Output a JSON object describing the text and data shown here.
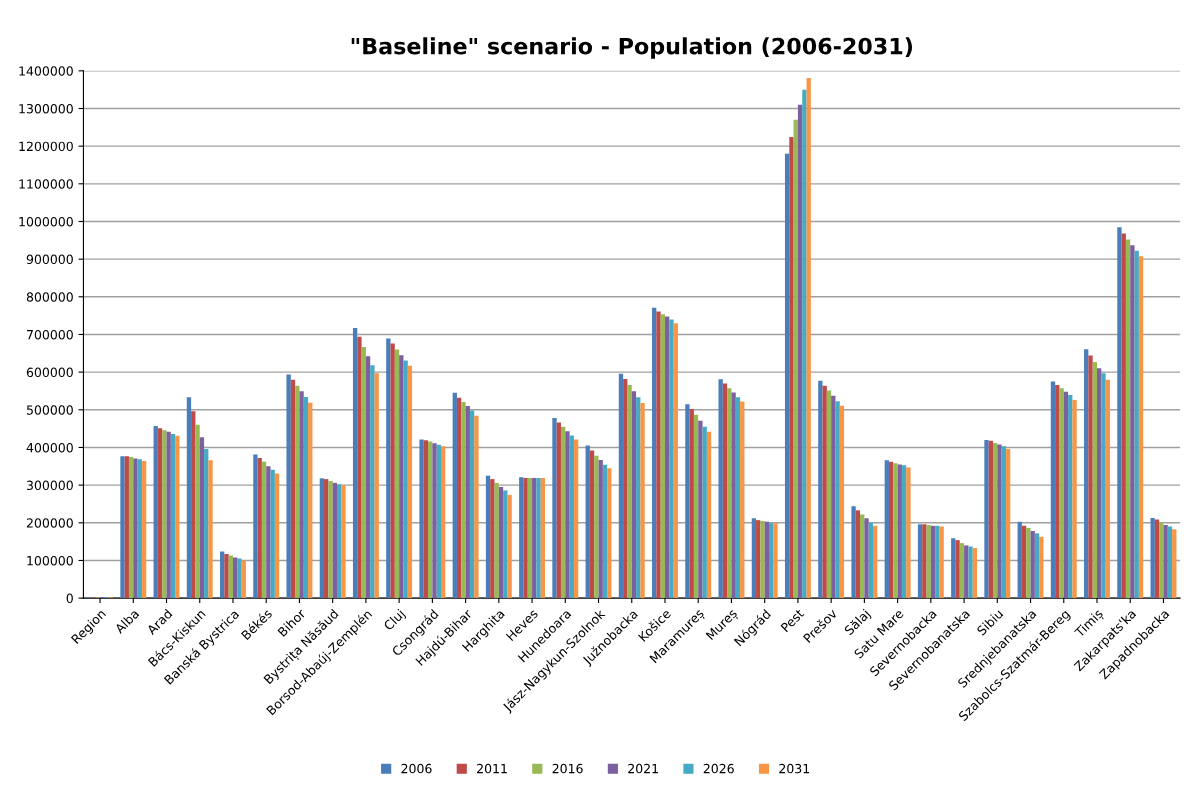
{
  "chart_data": {
    "type": "bar",
    "title": "\"Baseline\" scenario - Population (2006-2031)",
    "categories": [
      "Region",
      "Alba",
      "Arad",
      "Bács-Kiskun",
      "Banská Bystrica",
      "Békés",
      "Bihor",
      "Bystrița Năsăud",
      "Borsod-Abaúj-Zemplén",
      "Cluj",
      "Csongrád",
      "Hajdú-Bihar",
      "Harghita",
      "Heves",
      "Hunedoara",
      "Jász-Nagykun-Szolnok",
      "Južnobacka",
      "Košice",
      "Maramureș",
      "Mureș",
      "Nógrád",
      "Pest",
      "Prešov",
      "Sălaj",
      "Satu Mare",
      "Severnobacka",
      "Severnobanatska",
      "Sibiu",
      "Srednjebanatska",
      "Szabolcs-Szatmár-Bereg",
      "Timiș",
      "Zakarpats'ka",
      "Zapadnobacka"
    ],
    "series": [
      {
        "name": "2006",
        "color": "#4a7ebb",
        "values": [
          2000,
          377000,
          457000,
          533000,
          124000,
          381000,
          594000,
          318000,
          717000,
          689000,
          421000,
          545000,
          325000,
          321000,
          478000,
          405000,
          596000,
          771000,
          515000,
          581000,
          212000,
          1180000,
          577000,
          244000,
          366000,
          196000,
          159000,
          420000,
          203000,
          575000,
          661000,
          985000,
          213000
        ]
      },
      {
        "name": "2011",
        "color": "#be4b48",
        "values": [
          2000,
          377000,
          451000,
          496000,
          117000,
          372000,
          580000,
          316000,
          694000,
          676000,
          419000,
          532000,
          316000,
          319000,
          466000,
          392000,
          582000,
          761000,
          502000,
          570000,
          207000,
          1224000,
          564000,
          233000,
          362000,
          196000,
          154000,
          418000,
          192000,
          566000,
          644000,
          968000,
          209000
        ]
      },
      {
        "name": "2016",
        "color": "#98b954",
        "values": [
          2000,
          375000,
          446000,
          460000,
          113000,
          362000,
          564000,
          311000,
          667000,
          660000,
          416000,
          521000,
          306000,
          319000,
          455000,
          378000,
          566000,
          754000,
          487000,
          557000,
          205000,
          1270000,
          551000,
          222000,
          358000,
          194000,
          146000,
          412000,
          186000,
          557000,
          627000,
          952000,
          201000
        ]
      },
      {
        "name": "2021",
        "color": "#7d60a0",
        "values": [
          2000,
          371000,
          442000,
          427000,
          108000,
          350000,
          549000,
          306000,
          642000,
          645000,
          411000,
          510000,
          295000,
          319000,
          443000,
          367000,
          549000,
          748000,
          471000,
          546000,
          203000,
          1310000,
          537000,
          212000,
          355000,
          192000,
          140000,
          408000,
          178000,
          548000,
          610000,
          937000,
          194000
        ]
      },
      {
        "name": "2026",
        "color": "#46aac5",
        "values": [
          2000,
          369000,
          436000,
          396000,
          105000,
          341000,
          534000,
          302000,
          618000,
          631000,
          407000,
          498000,
          286000,
          319000,
          432000,
          354000,
          533000,
          740000,
          455000,
          533000,
          199000,
          1350000,
          523000,
          200000,
          353000,
          192000,
          137000,
          403000,
          172000,
          539000,
          597000,
          922000,
          190000
        ]
      },
      {
        "name": "2031",
        "color": "#f79646",
        "values": [
          2000,
          364000,
          431000,
          366000,
          99000,
          331000,
          519000,
          300000,
          597000,
          617000,
          403000,
          484000,
          274000,
          319000,
          421000,
          345000,
          518000,
          730000,
          442000,
          522000,
          199000,
          1381000,
          511000,
          192000,
          347000,
          190000,
          133000,
          396000,
          163000,
          526000,
          580000,
          908000,
          183000
        ]
      }
    ],
    "ylim": [
      0,
      1400000
    ],
    "yticks": [
      0,
      100000,
      200000,
      300000,
      400000,
      500000,
      600000,
      700000,
      800000,
      900000,
      1000000,
      1100000,
      1200000,
      1300000,
      1400000
    ],
    "grid": "y",
    "legend": "bottom"
  }
}
